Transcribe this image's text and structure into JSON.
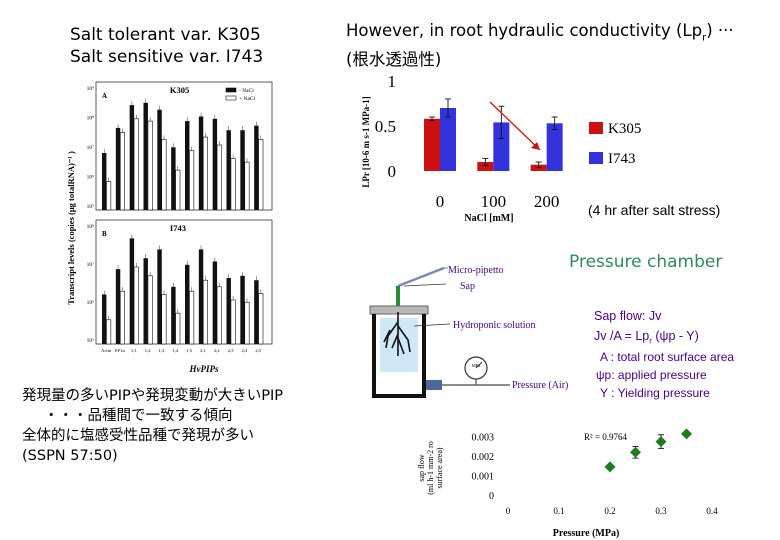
{
  "left_title": {
    "line1": "Salt tolerant var. K305",
    "line2": "Salt sensitive var. I743"
  },
  "right_title": {
    "line1": "However, in root hydraulic conductivity (Lp",
    "sub": "r",
    "line1_end": ") ···",
    "line2": "(根水透過性)"
  },
  "expression_figure": {
    "y_axis_label": "Transcript levels (copies (μg totalRNA)⁻¹ )",
    "x_axis_label": "HvPIPs",
    "legend": [
      "- NaCl",
      "+ NaCl"
    ],
    "panels": [
      {
        "letter": "A",
        "name": "K305",
        "minus": [
          0.5,
          0.72,
          0.92,
          0.94,
          0.88,
          0.55,
          0.78,
          0.82,
          0.8,
          0.7,
          0.7,
          0.74
        ],
        "plus": [
          0.25,
          0.68,
          0.8,
          0.78,
          0.62,
          0.35,
          0.52,
          0.64,
          0.57,
          0.45,
          0.42,
          0.62
        ]
      },
      {
        "letter": "B",
        "name": "I743",
        "minus": [
          0.45,
          0.68,
          0.96,
          0.78,
          0.86,
          0.52,
          0.72,
          0.86,
          0.75,
          0.6,
          0.62,
          0.58
        ],
        "plus": [
          0.22,
          0.48,
          0.7,
          0.62,
          0.45,
          0.28,
          0.48,
          0.58,
          0.52,
          0.4,
          0.38,
          0.46
        ]
      }
    ],
    "y_ticks_A": [
      "10⁹",
      "10⁸",
      "10⁷",
      "10⁶",
      "10⁵"
    ],
    "y_ticks_B": [
      "10⁸",
      "10⁷",
      "10⁶",
      "10⁵"
    ],
    "categories": [
      "Actin",
      "EF1α",
      "1;1",
      "1;2",
      "1;3",
      "1;4",
      "1;5",
      "2;1",
      "2;2",
      "2;3",
      "2;4",
      "2;5"
    ]
  },
  "notes_jp": {
    "line1": "発現量の多いPIPや発現変動が大きいPIP",
    "line2": "・・・品種間で一致する傾向",
    "line3": "全体的に塩感受性品種で発現が多い",
    "line4": "(SSPN 57:50)"
  },
  "lpr_chart": {
    "type": "bar",
    "ylabel": "LPr [10-6 m s-1 MPa-1]",
    "xlabel": "NaCl [mM]",
    "categories": [
      "0",
      "100",
      "200"
    ],
    "ylim": [
      0,
      1
    ],
    "yticks": [
      "1",
      "0.5",
      "0"
    ],
    "series": [
      {
        "name": "K305",
        "color": "#cc1111",
        "values": [
          0.58,
          0.1,
          0.07
        ],
        "err": [
          0.02,
          0.04,
          0.03
        ]
      },
      {
        "name": "I743",
        "color": "#3333dd",
        "values": [
          0.7,
          0.54,
          0.53
        ],
        "err": [
          0.1,
          0.18,
          0.07
        ]
      }
    ],
    "note": "(4 hr after salt stress)"
  },
  "pressure_chamber": {
    "title": "Pressure chamber",
    "labels": {
      "micro_pipetto": "Micro-pipetto",
      "sap": "Sap",
      "hydroponic": "Hydroponic solution",
      "pressure_air": "Pressure (Air)",
      "gauge": "MPa"
    },
    "equations": {
      "sap_flow": "Sap flow: Jv",
      "formula": "Jv /A = Lp",
      "formula_sub": "r",
      "formula_end": " (ψp - Y)",
      "def_a": "A : total root surface area",
      "def_psi": "ψp: applied pressure",
      "def_y": "Y : Yielding pressure"
    }
  },
  "sap_chart": {
    "type": "scatter",
    "ylabel_line1": "sap flow",
    "ylabel_line2": "(ml h-1 mm-2 ro",
    "ylabel_line3": "surface area)",
    "xlabel": "Pressure (MPa)",
    "xlim": [
      0,
      0.4
    ],
    "ylim": [
      0,
      0.0035
    ],
    "xticks": [
      "0",
      "0.1",
      "0.2",
      "0.3",
      "0.4"
    ],
    "yticks": [
      "0.003",
      "0.002",
      "0.001",
      "0"
    ],
    "points": [
      {
        "x": 0.2,
        "y": 0.0015,
        "err": 0.0001
      },
      {
        "x": 0.25,
        "y": 0.00225,
        "err": 0.0003
      },
      {
        "x": 0.3,
        "y": 0.0028,
        "err": 0.00035
      },
      {
        "x": 0.35,
        "y": 0.0032,
        "err": 0.0
      }
    ],
    "r2": "R² = 0.9764",
    "marker_color": "#1e7b1e"
  }
}
